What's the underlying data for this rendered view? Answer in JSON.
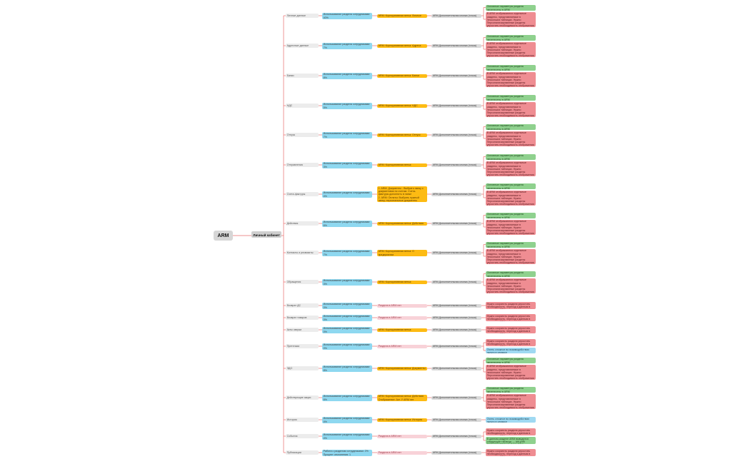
{
  "root_label": "ARM",
  "hub_label": "Личный кабинет",
  "colors": {
    "line": "#e96b6b",
    "blue": "#8ed8f0",
    "yellow": "#fdbb13",
    "green": "#8fd18e",
    "red": "#ef8d92",
    "grey": "#d9d9d9"
  },
  "branches": [
    {
      "name": "Личные данные",
      "blue": "Использование раздела сотрудниками: 40%\nПроцент отклонения: 4",
      "mid": "ARM: Корпоративная ветка: Личные данные",
      "mid_type": "yellow",
      "grey": "ARM Дополнительная кнопка (точка) Сервис",
      "outs": [
        {
          "t": "Основные параметры раздела перенесены в ARM",
          "c": "green"
        },
        {
          "t": "В ARM отображаются отдельные разделы, представляемые в нескольких таблицах. Нужно\nПерсонализированные разделы упростить необходимость отображения данных в ARM, нет и в ARM",
          "c": "red"
        }
      ]
    },
    {
      "name": "Адресные данные",
      "blue": "Использование раздела сотрудниками: 7%\nПроцент отклонения: 2",
      "mid": "ARM: Корпоративная ветка: Адреса",
      "mid_type": "yellow",
      "grey": "ARM Дополнительная кнопка (точка) Сервис",
      "outs": [
        {
          "t": "Основные параметры раздела перенесены в ARM",
          "c": "green"
        },
        {
          "t": "В ARM отображаются отдельные разделы, представляемые в нескольких таблицах. Нужно\nПерсонализированные разделы упростить необходимость отображения данных в ARM, нет и в ARM",
          "c": "red"
        }
      ]
    },
    {
      "name": "Банки",
      "blue": "Использование раздела сотрудниками: 8%\nПроцент отклонения: 3",
      "mid": "ARM: Корпоративная ветка: Банки",
      "mid_type": "yellow",
      "grey": "ARM Дополнительная кнопка (точка) Сервис",
      "outs": [
        {
          "t": "Основные параметры раздела перенесены в ARM",
          "c": "green"
        },
        {
          "t": "В ARM отображаются отдельные разделы, представляемые в нескольких таблицах. Нужно\nПерсонализированные разделы упростить необходимость отображения данных в ARM, нет и в ARM",
          "c": "red"
        }
      ]
    },
    {
      "name": "НДС",
      "blue": "Использование раздела сотрудниками: 5%\nПроцент отклонения: 4",
      "mid": "ARM: Корпоративная ветка: НДС",
      "mid_type": "yellow",
      "grey": "ARM Дополнительная кнопка (точка) Сервис",
      "outs": [
        {
          "t": "Основные параметры раздела перенесены в ARM",
          "c": "green"
        },
        {
          "t": "В ARM отображаются отдельные разделы, представляемые в нескольких таблицах. Нужно\nПерсонализированные разделы упростить необходимость отображения данных в ARM, нет и в ARM",
          "c": "red"
        }
      ]
    },
    {
      "name": "Отпуск",
      "blue": "Использование раздела сотрудниками: 7%\nПроцент отклонения: 3",
      "mid": "ARM: Корпоративная ветка: Отпуск",
      "mid_type": "yellow",
      "grey": "ARM Дополнительная кнопка (точка) Сервис",
      "outs": [
        {
          "t": "Основные параметры раздела перенесены в ARM",
          "c": "green"
        },
        {
          "t": "В ARM отображаются отдельные разделы, представляемые в нескольких таблицах. Нужно\nПерсонализированные разделы упростить необходимость отображения данных в ARM, нет и в ARM",
          "c": "red"
        }
      ]
    },
    {
      "name": "Отправления",
      "blue": "Использование раздела сотрудниками: 3%\nПроцент отклонения: 2",
      "mid": "ARM: Корпоративная ветка: Отправления",
      "mid_type": "yellow",
      "grey": "ARM Дополнительная кнопка (точка) Сервис",
      "outs": [
        {
          "t": "Основные параметры раздела перенесены в ARM",
          "c": "green"
        },
        {
          "t": "В ARM отображаются отдельные разделы, представляемые в нескольких таблицах. Нужно\nПерсонализированные разделы упростить необходимость отображения данных в ARM, нет и в ARM",
          "c": "red"
        }
      ]
    },
    {
      "name": "Счета-фактуры",
      "blue": "Использование раздела сотрудниками: 4%\nПроцент отклонения: 3",
      "mid": "1. ARM: Документы - Выбрать папку с документами по счетам. Счета-фактуры дополнить в папке\n2. ARM: Оплаты: Выбрать нужный папку, персональные документы",
      "mid_type": "yellow",
      "grey": "ARM Дополнительная кнопка (точка) Сервис",
      "outs": [
        {
          "t": "Основные параметры раздела перенесены в ARM",
          "c": "green"
        },
        {
          "t": "В ARM отображаются отдельные разделы, представляемые в нескольких таблицах. Нужно\nПерсонализированные разделы упростить необходимость отображения данных в ARM, нет и в ARM",
          "c": "red"
        }
      ]
    },
    {
      "name": "Действия",
      "blue": "Использование раздела сотрудниками: 6%\nПроцент отклонения: 4",
      "mid": "ARM: Корпоративная ветка: Действия",
      "mid_type": "yellow",
      "grey": "ARM Дополнительная кнопка (точка) Сервис",
      "outs": [
        {
          "t": "Основные параметры раздела перенесены в ARM",
          "c": "green"
        },
        {
          "t": "В ARM отображаются отдельные разделы, представляемые в нескольких таблицах. Нужно\nПерсонализированные разделы упростить необходимость отображения данных в ARM, нет и в ARM",
          "c": "red"
        }
      ]
    },
    {
      "name": "Контакты и реквизиты",
      "blue": "Использование раздела сотрудниками: 7%\nПроцент отклонения: 3",
      "mid": "ARM: Корпоративная ветка: О предприятии\nARM: Корпоративная ветка: Доверенности",
      "mid_type": "yellow",
      "grey": "ARM Дополнительная кнопка (точка) Сервис",
      "outs": [
        {
          "t": "Основные параметры раздела перенесены в ARM",
          "c": "green"
        },
        {
          "t": "В ARM отображаются отдельные разделы, представляемые в нескольких таблицах. Нужно\nПерсонализированные разделы упростить необходимость отображения данных в ARM, нет и в ARM",
          "c": "red"
        }
      ]
    },
    {
      "name": "Обращения",
      "blue": "Использование раздела сотрудниками: 3%\nПроцент отклонения: 4",
      "mid": "ARM: Корпоративная ветка: Обращения",
      "mid_type": "yellow",
      "grey": "ARM Дополнительная кнопка (точка) Сервис",
      "outs": [
        {
          "t": "Основные параметры раздела перенесены в ARM",
          "c": "green"
        },
        {
          "t": "В ARM отображаются отдельные разделы, представляемые в нескольких таблицах. Нужно\nПерсонализированные разделы упростить необходимость отображения данных в ARM, нет и в ARM",
          "c": "red"
        }
      ]
    },
    {
      "name": "Возврат ДС",
      "blue": "Использование раздела сотрудниками: 0%\nПроцент отклонения: 1",
      "mid": "Раздела в ARM нет",
      "mid_type": "pink",
      "grey": "ARM Дополнительная кнопка (точка) Сервис",
      "outs": [
        {
          "t": "Нужно сократить раздела упростить необходимость, переход к данным в разделе в ARM",
          "c": "red"
        }
      ]
    },
    {
      "name": "Возврат товаров",
      "blue": "Использование раздела сотрудниками: 0%\nПроцент отклонения: 1",
      "mid": "Раздела в ARM нет",
      "mid_type": "pink",
      "grey": "ARM Дополнительная кнопка (точка) Сервис",
      "outs": [
        {
          "t": "Нужно сократить раздела упростить необходимость, переход к данным в разделе в ARM",
          "c": "red"
        }
      ]
    },
    {
      "name": "Акты сверки",
      "blue": "Использование раздела сотрудниками: 0%\nПроцент отклонения: 1",
      "mid": "ARM: Корпоративная ветка: Документы: Акты сверки",
      "mid_type": "yellow",
      "grey": "ARM Дополнительная кнопка (точка) Сервис",
      "outs": [
        {
          "t": "Нужно сократить раздела упростить необходимость, переход к данным в разделе в ARM",
          "c": "red"
        }
      ]
    },
    {
      "name": "Претензии",
      "blue": "Использование раздела сотрудниками: 0%\nПроцент отклонения: 3",
      "mid": "Раздела в ARM нет",
      "mid_type": "pink",
      "grey": "ARM Дополнительная кнопка (точка) Сервис",
      "outs": [
        {
          "t": "Нужно сократить раздела упростить необходимость, переход к данным в разделе в ARM",
          "c": "red"
        },
        {
          "t": "Очень сложное во взаимодействии пункта в сервисе",
          "c": "blue"
        }
      ]
    },
    {
      "name": "ЭДО",
      "blue": "Использование раздела сотрудниками: 8%\nПроцент отклонения: 4",
      "mid": "ARM: Корпоративная ветка: Документы",
      "mid_type": "yellow",
      "grey": "ARM Дополнительная кнопка (точка) Сервис",
      "outs": [
        {
          "t": "Основные параметры раздела перенесены в ARM",
          "c": "green"
        },
        {
          "t": "В ARM отображаются отдельные разделы, представляемые в нескольких таблицах. Нужно\nПерсонализированные разделы упростить необходимость отображения данных в ARM, нет и в ARM",
          "c": "red"
        }
      ]
    },
    {
      "name": "Действующие акции",
      "blue": "Использование раздела сотрудниками: 6%\nПроцент отклонения: 1",
      "mid": "ARM: Корпоративная ветка: Действия\nОтображение: Акт. У ARM нет \"Портала\"",
      "mid_type": "yellow",
      "grey": "ARM Дополнительная кнопка (точка) Сервис",
      "outs": [
        {
          "t": "Основные параметры раздела перенесены в ARM",
          "c": "green"
        },
        {
          "t": "В ARM отображаются отдельные разделы, представляемые в нескольких таблицах. Нужно\nПерсонализированные разделы упростить необходимость отображения данных в ARM, нет и в ARM",
          "c": "red"
        }
      ]
    },
    {
      "name": "История",
      "blue": "Использование раздела сотрудниками: 4%\nПроцент отклонения: 4",
      "mid": "ARM: Корпоративная ветка: История",
      "mid_type": "yellow",
      "grey": "ARM Дополнительная кнопка (точка) Сервис",
      "outs": [
        {
          "t": "Очень сложное во взаимодействии пункта в сервисе",
          "c": "blue"
        }
      ]
    },
    {
      "name": "События",
      "blue": "Использование раздела сотрудниками: 4%\nПроцент отклонения: 4",
      "mid": "Раздела в ARM нет",
      "mid_type": "pink",
      "grey": "ARM Дополнительная кнопка (точка) Сервис",
      "outs": [
        {
          "t": "Нужно сократить раздела упростить необходимость, переход к данным в разделе в ARM",
          "c": "red"
        },
        {
          "t": "В данном разделе ARM выводятся следующие таблицы — АКЦИЯ/ПОДАРОК/ПРОМО-ПОДАРОК/ПРЕДЛОЖЕНИЕ",
          "c": "green"
        }
      ]
    },
    {
      "name": "Публикации",
      "blue": "Работа с разделом сотрудниками: 2%\nПроцент отклонения: 1",
      "mid": "Раздела в ARM нет",
      "mid_type": "pink",
      "grey": "ARM Дополнительная кнопка (точка) Сервис",
      "outs": [
        {
          "t": "Нужно сократить раздела упростить необходимость, переход к данным в разделе в ARM",
          "c": "red"
        }
      ]
    }
  ]
}
